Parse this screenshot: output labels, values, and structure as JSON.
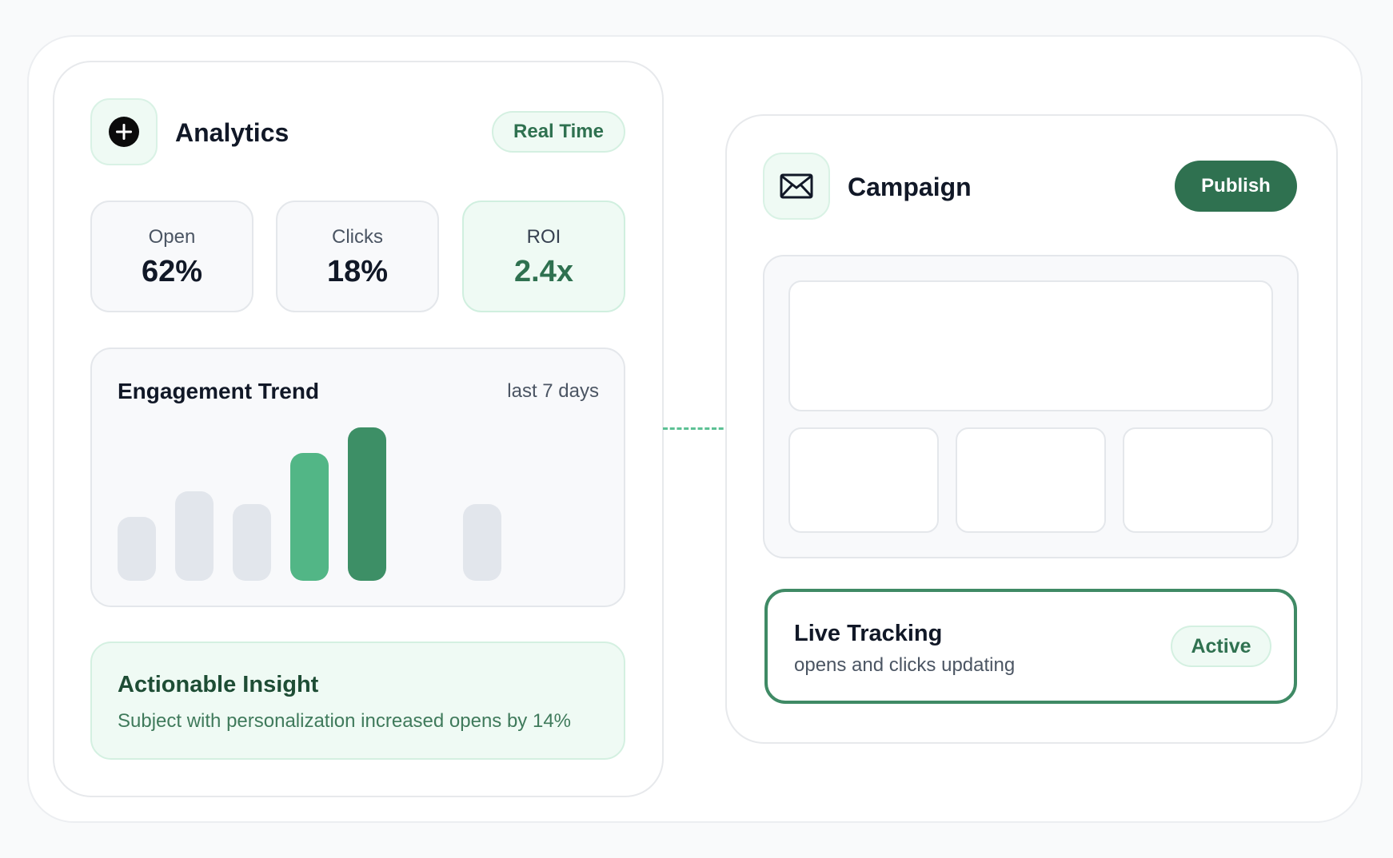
{
  "analytics": {
    "title": "Analytics",
    "icon": "plus-circle-icon",
    "badge": "Real Time",
    "stats": [
      {
        "label": "Open",
        "value": "62%"
      },
      {
        "label": "Clicks",
        "value": "18%"
      },
      {
        "label": "ROI",
        "value": "2.4x"
      }
    ],
    "trend": {
      "title": "Engagement Trend",
      "range": "last 7 days"
    },
    "insight": {
      "title": "Actionable Insight",
      "text": "Subject with personalization increased opens by 14%"
    }
  },
  "campaign": {
    "title": "Campaign",
    "icon": "envelope-icon",
    "publish_label": "Publish",
    "live": {
      "title": "Live Tracking",
      "subtitle": "opens and clicks updating",
      "status": "Active"
    }
  },
  "chart_data": {
    "type": "bar",
    "title": "Engagement Trend",
    "subtitle": "last 7 days",
    "values": [
      40,
      56,
      48,
      80,
      96,
      0,
      48
    ],
    "highlighted": [
      false,
      false,
      false,
      true,
      true,
      false,
      false
    ],
    "ylim": [
      0,
      100
    ],
    "grid": false,
    "colors": {
      "default": "#e2e6ec",
      "highlight": "#52b686",
      "peak": "#3d8f66"
    }
  },
  "colors": {
    "accent": "#2f7150",
    "accent_soft": "#effaf4",
    "connector": "#5cc194"
  }
}
